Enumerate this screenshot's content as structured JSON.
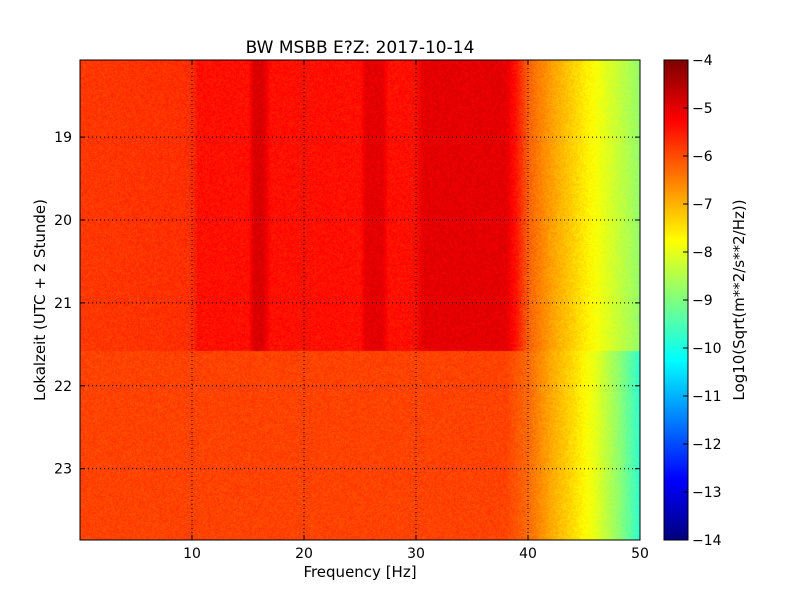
{
  "chart_data": {
    "type": "heatmap",
    "title": "BW MSBB E?Z: 2017-10-14",
    "xlabel": "Frequency [Hz]",
    "ylabel": "Lokalzeit (UTC + 2 Stunde)",
    "xlim": [
      0,
      50
    ],
    "ylim": [
      23.86,
      18.07
    ],
    "xticks": [
      10,
      20,
      30,
      40,
      50
    ],
    "yticks": [
      19,
      20,
      21,
      22,
      23
    ],
    "grid": true,
    "colorbar": {
      "label": "Log10(Sqrt(m**2/s**2/Hz))",
      "range": [
        -14,
        -4
      ],
      "ticks": [
        -4,
        -5,
        -6,
        -7,
        -8,
        -9,
        -10,
        -11,
        -12,
        -13,
        -14
      ],
      "colormap": "jet"
    },
    "segments": [
      {
        "time_range": [
          18.07,
          21.58
        ],
        "frequency": [
          0,
          10,
          10.5,
          15,
          15.5,
          16.3,
          17,
          25,
          25.5,
          27,
          27.5,
          30,
          30.5,
          38,
          39,
          40,
          42,
          44,
          46,
          48,
          50
        ],
        "level": [
          -5.8,
          -5.7,
          -5.4,
          -5.4,
          -4.9,
          -4.9,
          -5.4,
          -5.4,
          -5.0,
          -5.0,
          -5.4,
          -5.4,
          -5.0,
          -5.0,
          -5.5,
          -6.2,
          -6.8,
          -7.3,
          -7.8,
          -8.3,
          -8.8
        ]
      },
      {
        "time_range": [
          21.58,
          23.86
        ],
        "frequency": [
          0,
          38,
          40,
          42,
          44,
          46,
          48,
          50
        ],
        "level": [
          -5.9,
          -5.9,
          -6.3,
          -6.9,
          -7.4,
          -8.0,
          -8.8,
          -9.8
        ]
      }
    ]
  }
}
